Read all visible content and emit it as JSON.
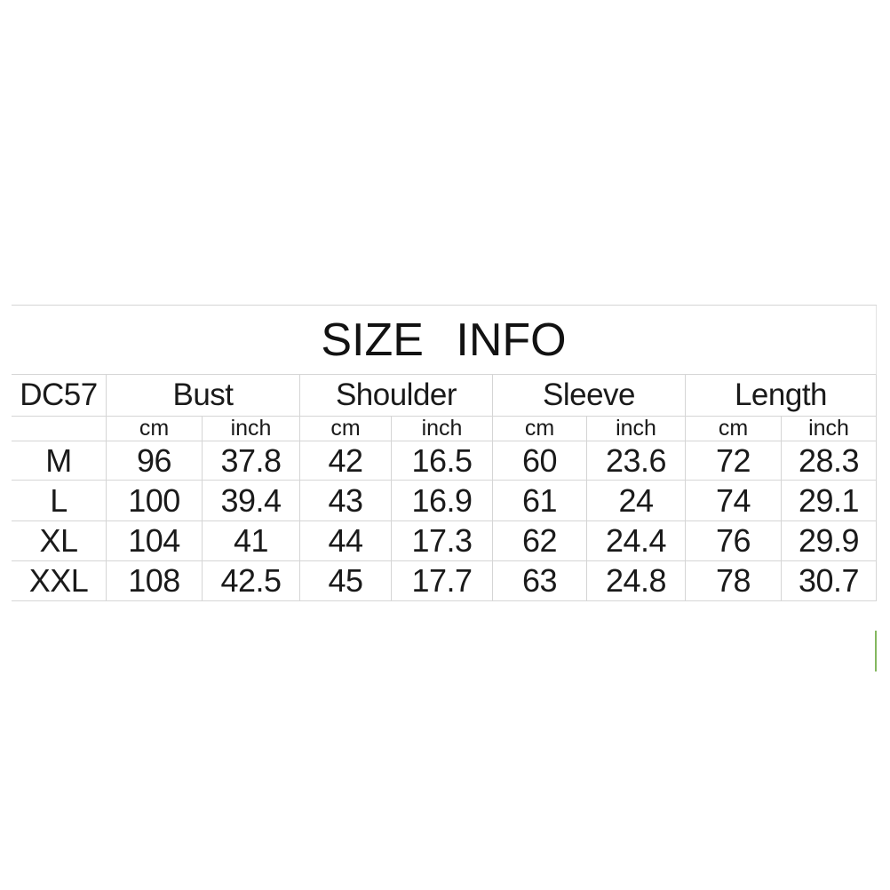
{
  "title": "SIZE INFO",
  "size_table": {
    "model_code": "DC57",
    "measurement_groups": [
      "Bust",
      "Shoulder",
      "Sleeve",
      "Length"
    ],
    "units": [
      "cm",
      "inch",
      "cm",
      "inch",
      "cm",
      "inch",
      "cm",
      "inch"
    ],
    "rows": [
      {
        "size": "M",
        "values": [
          "96",
          "37.8",
          "42",
          "16.5",
          "60",
          "23.6",
          "72",
          "28.3"
        ]
      },
      {
        "size": "L",
        "values": [
          "100",
          "39.4",
          "43",
          "16.9",
          "61",
          "24",
          "74",
          "29.1"
        ]
      },
      {
        "size": "XL",
        "values": [
          "104",
          "41",
          "44",
          "17.3",
          "62",
          "24.4",
          "76",
          "29.9"
        ]
      },
      {
        "size": "XXL",
        "values": [
          "108",
          "42.5",
          "45",
          "17.7",
          "63",
          "24.8",
          "78",
          "30.7"
        ]
      }
    ]
  },
  "colors": {
    "background": "#ffffff",
    "gridline": "#d5d5d5",
    "text": "#1a1a1a",
    "selection_green": "#84b860"
  }
}
